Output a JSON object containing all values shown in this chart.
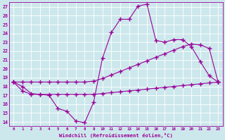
{
  "xlabel": "Windchill (Refroidissement éolien,°C)",
  "x": [
    0,
    1,
    2,
    3,
    4,
    5,
    6,
    7,
    8,
    9,
    10,
    11,
    12,
    13,
    14,
    15,
    16,
    17,
    18,
    19,
    20,
    21,
    22,
    23
  ],
  "line1": [
    18.5,
    18.0,
    17.2,
    17.1,
    17.0,
    15.5,
    15.2,
    14.1,
    13.9,
    16.2,
    21.2,
    24.1,
    25.6,
    25.6,
    27.1,
    27.3,
    23.2,
    23.0,
    23.3,
    23.3,
    22.5,
    20.8,
    19.2,
    18.5
  ],
  "line2": [
    18.5,
    18.5,
    18.5,
    18.5,
    18.5,
    18.5,
    18.5,
    18.5,
    18.5,
    18.6,
    18.9,
    19.3,
    19.7,
    20.1,
    20.5,
    20.9,
    21.3,
    21.7,
    22.1,
    22.5,
    22.8,
    22.7,
    22.3,
    18.5
  ],
  "line3": [
    18.5,
    17.5,
    17.1,
    17.1,
    17.1,
    17.1,
    17.1,
    17.1,
    17.1,
    17.1,
    17.2,
    17.3,
    17.4,
    17.5,
    17.6,
    17.7,
    17.8,
    17.9,
    18.0,
    18.1,
    18.2,
    18.3,
    18.4,
    18.5
  ],
  "ylim": [
    14,
    27
  ],
  "xlim": [
    0,
    23
  ],
  "yticks": [
    14,
    15,
    16,
    17,
    18,
    19,
    20,
    21,
    22,
    23,
    24,
    25,
    26,
    27
  ],
  "xticks": [
    0,
    1,
    2,
    3,
    4,
    5,
    6,
    7,
    8,
    9,
    10,
    11,
    12,
    13,
    14,
    15,
    16,
    17,
    18,
    19,
    20,
    21,
    22,
    23
  ],
  "line_color": "#990099",
  "bg_color": "#cde8ec",
  "grid_color": "#b0d8e0",
  "marker": "+",
  "marker_size": 4,
  "linewidth": 0.8
}
